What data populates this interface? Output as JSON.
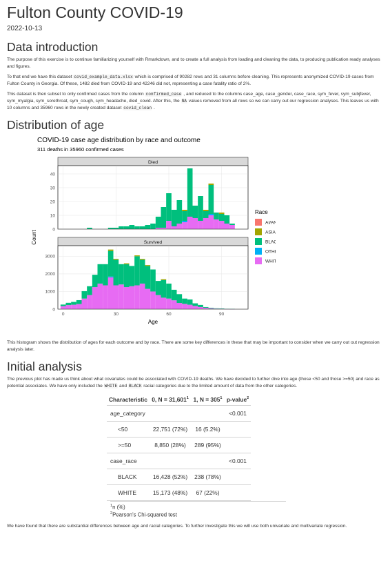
{
  "title": "Fulton County COVID-19",
  "date": "2022-10-13",
  "sections": {
    "intro_heading": "Data introduction",
    "dist_heading": "Distribution of age",
    "analysis_heading": "Initial analysis"
  },
  "intro": {
    "p1": "The purpose of this exercise is to continue familiarizing yourself with Rmarkdown, and to create a full analysis from loading and cleaning the data, to producing publication ready analyses and figures.",
    "p2_a": "To that end we have this dataset ",
    "p2_code": "covid_example_data.xlsx",
    "p2_b": " which is comprised of 90282 rows and 31 columns before cleaning. This represents anonymized COVID-19 cases from Fulton County in Georgia. Of these, 1482 died from COVID-19 and 42246 did not, representing a case fatality ratio of 2%.",
    "p3_a": "This dataset is then subset to only confirmed cases from the column ",
    "p3_code1": "confirmed_case",
    "p3_b": " , and reduced to the columns case_age, case_gender, case_race, sym_fever, sym_subjfever, sym_myalgia, sym_sorethroat, sym_cough, sym_headache, died_covid. After this, the ",
    "p3_code2": "NA",
    "p3_c": " values removed from all rows so we can carry out our regression analyses. This leaves us with 10 columns and 35960 rows in the newly created dataset ",
    "p3_code3": "covid_clean",
    "p3_d": " ."
  },
  "histogram_text": "This histogram shows the distribution of ages for each outcome and by race. There are some key differences in these that may be important to consider when we carry out out regression analysis later.",
  "analysis": {
    "p1_a": "The previous plot has made us think about what covariates could be associated with COVID-19 deaths. We have decided to further dive into age (those <50 and those >=50) and race as potential associates. We have only included the ",
    "p1_code1": "WHITE",
    "p1_b": " and ",
    "p1_code2": "BLACK",
    "p1_c": " racial categories due to the limited amount of data from the other categories.",
    "p2": "We have found that there are substantial differences between age and racial categories. To further investigate this we will use both univariate and multivariate regression."
  },
  "table": {
    "headers": [
      "Characteristic",
      "0, N = 31,601",
      "1, N = 305",
      "p-value"
    ],
    "header_marks": [
      "",
      "1",
      "1",
      "2"
    ],
    "rows": [
      {
        "label": "age_category",
        "c0": "",
        "c1": "",
        "p": "<0.001",
        "indent": false
      },
      {
        "label": "<50",
        "c0": "22,751 (72%)",
        "c1": "16 (5.2%)",
        "p": "",
        "indent": true
      },
      {
        "label": ">=50",
        "c0": "8,850 (28%)",
        "c1": "289 (95%)",
        "p": "",
        "indent": true
      },
      {
        "label": "case_race",
        "c0": "",
        "c1": "",
        "p": "<0.001",
        "indent": false
      },
      {
        "label": "BLACK",
        "c0": "16,428 (52%)",
        "c1": "238 (78%)",
        "p": "",
        "indent": true
      },
      {
        "label": "WHITE",
        "c0": "15,173 (48%)",
        "c1": "67 (22%)",
        "p": "",
        "indent": true
      }
    ],
    "footnote1_mark": "1",
    "footnote1": "n (%)",
    "footnote2_mark": "2",
    "footnote2": "Pearson's Chi-squared test"
  },
  "colors": {
    "AI/AN": "#F8766D",
    "ASIAN": "#A3A500",
    "BLACK": "#00BF7D",
    "OTHER": "#00B0F6",
    "WHITE": "#E76BF3"
  },
  "chart_data": {
    "type": "bar",
    "title": "COVID-19 case age distribution by race and outcome",
    "subtitle": "311 deaths in 35960 confirmed cases",
    "xlabel": "Age",
    "ylabel": "Count",
    "legend_title": "Race",
    "legend_position": "right",
    "stacked": true,
    "bin_width": 3,
    "xlim": [
      -3,
      105
    ],
    "x_ticks": [
      0,
      30,
      60,
      90
    ],
    "races": [
      "AI/AN",
      "ASIAN",
      "BLACK",
      "OTHER",
      "WHITE"
    ],
    "panels": [
      {
        "name": "Died",
        "ylim": [
          0,
          46
        ],
        "y_ticks": [
          0,
          10,
          20,
          30,
          40
        ],
        "bins": [
          {
            "x": 15,
            "WHITE": 0,
            "BLACK": 1
          },
          {
            "x": 27,
            "WHITE": 0,
            "BLACK": 1
          },
          {
            "x": 30,
            "WHITE": 0,
            "BLACK": 1
          },
          {
            "x": 33,
            "WHITE": 0,
            "BLACK": 2
          },
          {
            "x": 36,
            "WHITE": 0,
            "BLACK": 2
          },
          {
            "x": 39,
            "WHITE": 0,
            "BLACK": 3
          },
          {
            "x": 42,
            "WHITE": 0,
            "BLACK": 2
          },
          {
            "x": 45,
            "WHITE": 0,
            "BLACK": 2
          },
          {
            "x": 48,
            "WHITE": 0,
            "BLACK": 3
          },
          {
            "x": 51,
            "WHITE": 0,
            "BLACK": 4
          },
          {
            "x": 54,
            "WHITE": 1,
            "BLACK": 8
          },
          {
            "x": 57,
            "WHITE": 1,
            "BLACK": 15
          },
          {
            "x": 60,
            "WHITE": 6,
            "BLACK": 20
          },
          {
            "x": 63,
            "WHITE": 2,
            "BLACK": 12
          },
          {
            "x": 66,
            "WHITE": 4,
            "BLACK": 17
          },
          {
            "x": 69,
            "WHITE": 5,
            "BLACK": 7,
            "OTHER": 1,
            "ASIAN": 1
          },
          {
            "x": 72,
            "WHITE": 9,
            "BLACK": 35
          },
          {
            "x": 75,
            "WHITE": 8,
            "BLACK": 9
          },
          {
            "x": 78,
            "WHITE": 6,
            "BLACK": 18
          },
          {
            "x": 81,
            "WHITE": 8,
            "BLACK": 5,
            "ASIAN": 1
          },
          {
            "x": 84,
            "WHITE": 10,
            "BLACK": 21,
            "ASIAN": 1,
            "OTHER": 1
          },
          {
            "x": 87,
            "WHITE": 7,
            "BLACK": 5
          },
          {
            "x": 90,
            "WHITE": 6,
            "BLACK": 5,
            "ASIAN": 1
          },
          {
            "x": 93,
            "WHITE": 4,
            "BLACK": 6
          },
          {
            "x": 96,
            "WHITE": 3,
            "BLACK": 1
          }
        ]
      },
      {
        "name": "Survived",
        "ylim": [
          0,
          3600
        ],
        "y_ticks": [
          0,
          1000,
          2000,
          3000
        ],
        "bins": [
          {
            "x": 0,
            "WHITE": 170,
            "BLACK": 90
          },
          {
            "x": 3,
            "WHITE": 230,
            "BLACK": 130
          },
          {
            "x": 6,
            "WHITE": 250,
            "BLACK": 160
          },
          {
            "x": 9,
            "WHITE": 290,
            "BLACK": 220
          },
          {
            "x": 12,
            "WHITE": 600,
            "BLACK": 420
          },
          {
            "x": 15,
            "WHITE": 800,
            "BLACK": 500
          },
          {
            "x": 18,
            "WHITE": 1250,
            "BLACK": 700
          },
          {
            "x": 21,
            "WHITE": 1450,
            "BLACK": 1100
          },
          {
            "x": 24,
            "WHITE": 1350,
            "BLACK": 1200
          },
          {
            "x": 27,
            "WHITE": 1800,
            "BLACK": 1450,
            "OTHER": 50,
            "ASIAN": 80
          },
          {
            "x": 30,
            "WHITE": 1350,
            "BLACK": 1450,
            "ASIAN": 50
          },
          {
            "x": 33,
            "WHITE": 1400,
            "BLACK": 1150
          },
          {
            "x": 36,
            "WHITE": 1250,
            "BLACK": 1300,
            "ASIAN": 50
          },
          {
            "x": 39,
            "WHITE": 1300,
            "BLACK": 1150
          },
          {
            "x": 42,
            "WHITE": 1350,
            "BLACK": 1650,
            "ASIAN": 50
          },
          {
            "x": 45,
            "WHITE": 1450,
            "BLACK": 1350,
            "ASIAN": 50
          },
          {
            "x": 48,
            "WHITE": 1150,
            "BLACK": 1300,
            "ASIAN": 50
          },
          {
            "x": 51,
            "WHITE": 1000,
            "BLACK": 1250
          },
          {
            "x": 54,
            "WHITE": 800,
            "BLACK": 800
          },
          {
            "x": 57,
            "WHITE": 650,
            "BLACK": 1000,
            "ASIAN": 50
          },
          {
            "x": 60,
            "WHITE": 600,
            "BLACK": 850
          },
          {
            "x": 63,
            "WHITE": 500,
            "BLACK": 600
          },
          {
            "x": 66,
            "WHITE": 350,
            "BLACK": 500
          },
          {
            "x": 69,
            "WHITE": 300,
            "BLACK": 300
          },
          {
            "x": 72,
            "WHITE": 250,
            "BLACK": 300
          },
          {
            "x": 75,
            "WHITE": 180,
            "BLACK": 150
          },
          {
            "x": 78,
            "WHITE": 120,
            "BLACK": 120
          },
          {
            "x": 81,
            "WHITE": 80,
            "BLACK": 40
          },
          {
            "x": 84,
            "WHITE": 50,
            "BLACK": 30
          },
          {
            "x": 87,
            "WHITE": 30,
            "BLACK": 20
          },
          {
            "x": 90,
            "WHITE": 20,
            "BLACK": 20
          },
          {
            "x": 93,
            "WHITE": 10,
            "BLACK": 10
          },
          {
            "x": 96,
            "WHITE": 8,
            "BLACK": 5
          }
        ]
      }
    ]
  }
}
